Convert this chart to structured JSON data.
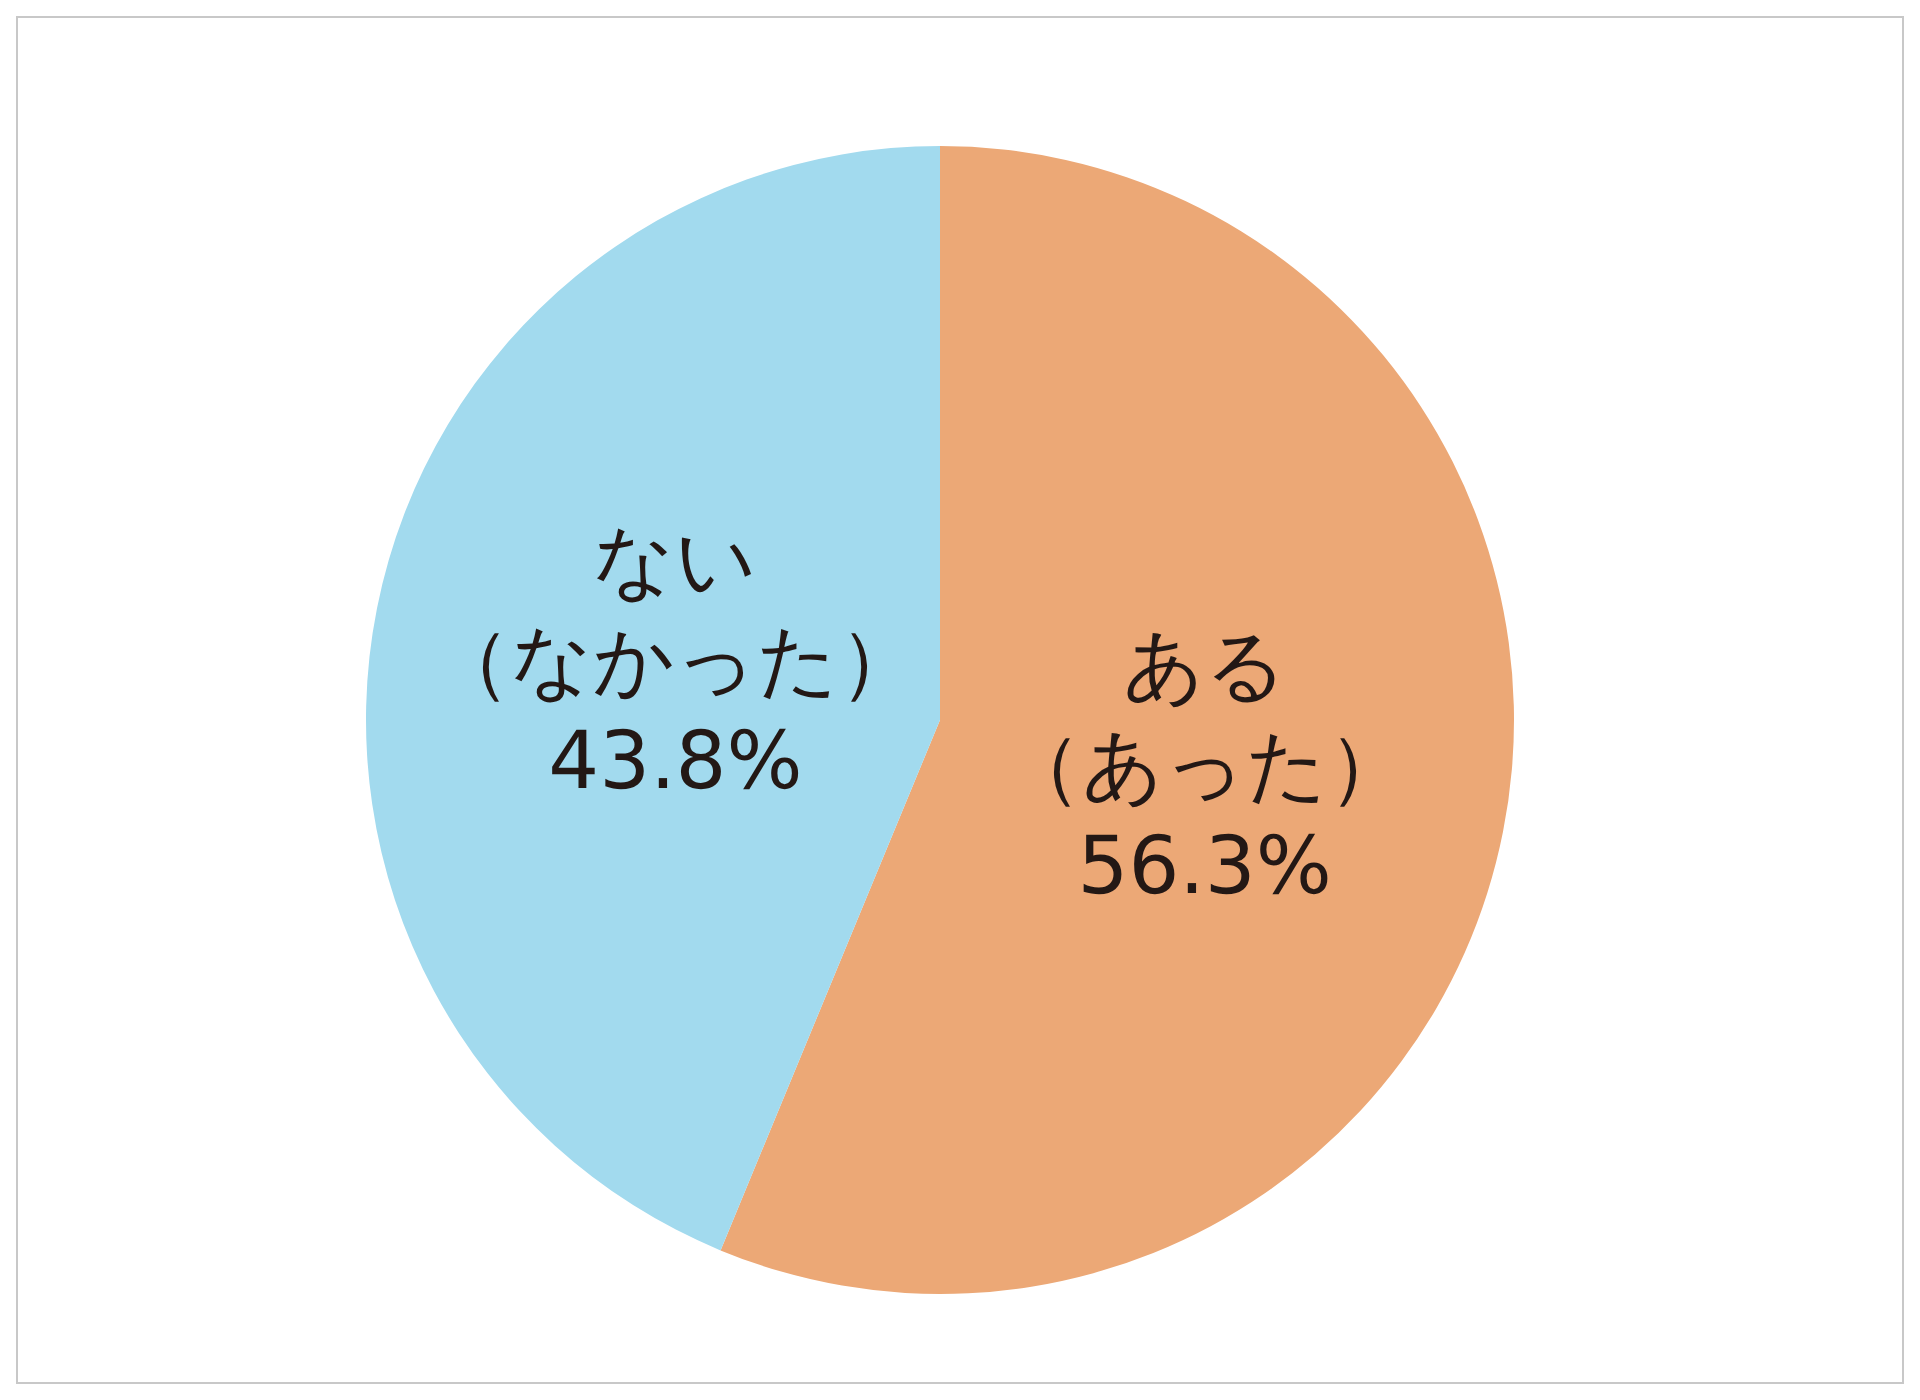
{
  "chart_data": {
    "type": "pie",
    "categories": [
      "ある（あった）",
      "ない（なかった）"
    ],
    "values": [
      56.3,
      43.8
    ],
    "colors": [
      "#eca876",
      "#a2daee"
    ],
    "value_labels": [
      "56.3%",
      "43.8%"
    ],
    "legend": false
  }
}
